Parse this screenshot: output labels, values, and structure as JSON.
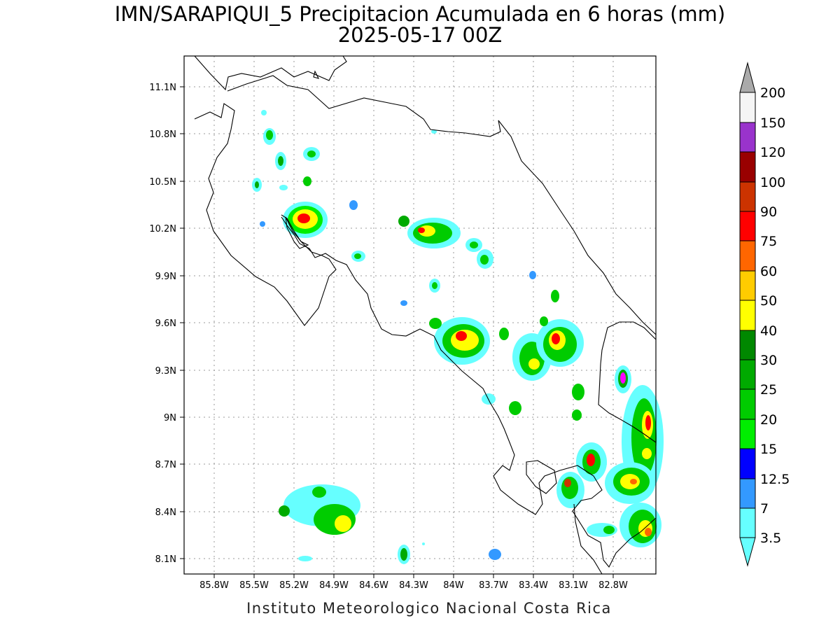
{
  "title": "IMN/SARAPIQUI_5 Precipitacion Acumulada en 6 horas (mm)",
  "subtitle": "2025-05-17 00Z",
  "credit": "Instituto Meteorologico Nacional Costa Rica",
  "x_axis": {
    "ticks": [
      "85.8W",
      "85.5W",
      "85.2W",
      "84.9W",
      "84.6W",
      "84.3W",
      "84W",
      "83.7W",
      "83.4W",
      "83.1W",
      "82.8W"
    ]
  },
  "y_axis": {
    "ticks": [
      "11.1N",
      "10.8N",
      "10.5N",
      "10.2N",
      "9.9N",
      "9.6N",
      "9.3N",
      "9N",
      "8.7N",
      "8.4N",
      "8.1N"
    ]
  },
  "colorbar": {
    "labels": [
      "3.5",
      "7",
      "12.5",
      "15",
      "20",
      "25",
      "30",
      "40",
      "50",
      "60",
      "75",
      "90",
      "100",
      "120",
      "150",
      "200"
    ],
    "colors": [
      "#66ffff",
      "#3399ff",
      "#0000ff",
      "#00ee00",
      "#00cc00",
      "#00aa00",
      "#008800",
      "#ffff00",
      "#ffcc00",
      "#ff6600",
      "#ff0000",
      "#cc3300",
      "#990000",
      "#ff00ff",
      "#9933cc",
      "#f5f5f5",
      "#aaaaaa"
    ]
  }
}
